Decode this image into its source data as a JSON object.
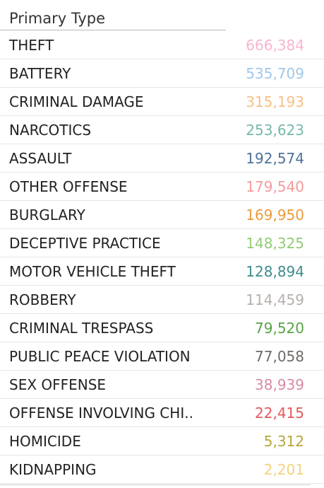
{
  "header": {
    "column_label": "Primary Type"
  },
  "rows": [
    {
      "type": "THEFT",
      "count": "666,384",
      "color": "#f7b5d0"
    },
    {
      "type": "BATTERY",
      "count": "535,709",
      "color": "#9fc8ea"
    },
    {
      "type": "CRIMINAL DAMAGE",
      "count": "315,193",
      "color": "#f7bf87"
    },
    {
      "type": "NARCOTICS",
      "count": "253,623",
      "color": "#76b8ad"
    },
    {
      "type": "ASSAULT",
      "count": "192,574",
      "color": "#4f7297"
    },
    {
      "type": "OTHER OFFENSE",
      "count": "179,540",
      "color": "#f49a9a"
    },
    {
      "type": "BURGLARY",
      "count": "169,950",
      "color": "#eb9b3c"
    },
    {
      "type": "DECEPTIVE PRACTICE",
      "count": "148,325",
      "color": "#92cc78"
    },
    {
      "type": "MOTOR VEHICLE THEFT",
      "count": "128,894",
      "color": "#3f8b8b"
    },
    {
      "type": "ROBBERY",
      "count": "114,459",
      "color": "#b7b1ad"
    },
    {
      "type": "CRIMINAL TRESPASS",
      "count": "79,520",
      "color": "#56a343"
    },
    {
      "type": "PUBLIC PEACE VIOLATION",
      "count": "77,058",
      "color": "#6f6a68"
    },
    {
      "type": "SEX OFFENSE",
      "count": "38,939",
      "color": "#d98aa3"
    },
    {
      "type": "OFFENSE INVOLVING CHI..",
      "count": "22,415",
      "color": "#e3585c"
    },
    {
      "type": "HOMICIDE",
      "count": "5,312",
      "color": "#b6a63a"
    },
    {
      "type": "KIDNAPPING",
      "count": "2,201",
      "color": "#f4d27e"
    }
  ]
}
